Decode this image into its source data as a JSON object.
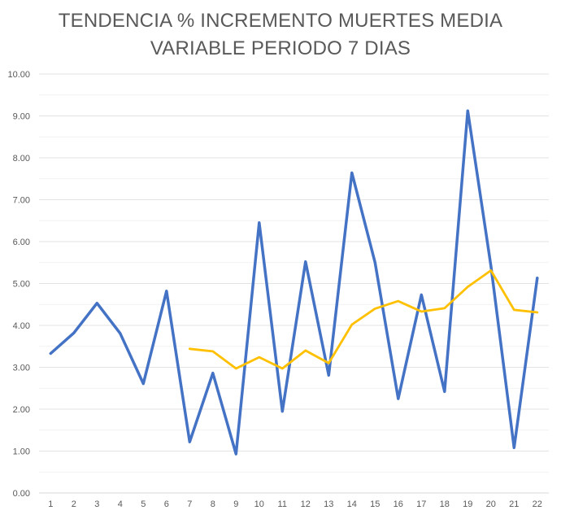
{
  "chart_data": {
    "type": "line",
    "title": "TENDENCIA % INCREMENTO MUERTES MEDIA VARIABLE PERIODO 7 DIAS",
    "title_lines": [
      "TENDENCIA % INCREMENTO MUERTES MEDIA",
      "VARIABLE PERIODO 7 DIAS"
    ],
    "xlabel": "",
    "ylabel": "",
    "ylim": [
      0,
      10
    ],
    "y_ticks": [
      "0.00",
      "1.00",
      "2.00",
      "3.00",
      "4.00",
      "5.00",
      "6.00",
      "7.00",
      "8.00",
      "9.00",
      "10.00"
    ],
    "grid": "horizontal",
    "legend": "none",
    "categories": [
      "1",
      "2",
      "3",
      "4",
      "5",
      "6",
      "7",
      "8",
      "9",
      "10",
      "11",
      "12",
      "13",
      "14",
      "15",
      "16",
      "17",
      "18",
      "19",
      "20",
      "21",
      "22"
    ],
    "series": [
      {
        "color": "#4472C4",
        "values": [
          3.33,
          3.82,
          4.53,
          3.81,
          2.61,
          4.82,
          1.22,
          2.86,
          0.93,
          6.45,
          1.95,
          5.52,
          2.81,
          7.64,
          5.5,
          2.25,
          4.73,
          2.42,
          9.12,
          5.42,
          1.08,
          5.13
        ]
      },
      {
        "color": "#FFC000",
        "values": [
          null,
          null,
          null,
          null,
          null,
          null,
          3.44,
          3.38,
          2.97,
          3.24,
          2.97,
          3.4,
          3.1,
          4.02,
          4.4,
          4.58,
          4.33,
          4.41,
          4.92,
          5.31,
          4.37,
          4.31
        ]
      }
    ]
  }
}
